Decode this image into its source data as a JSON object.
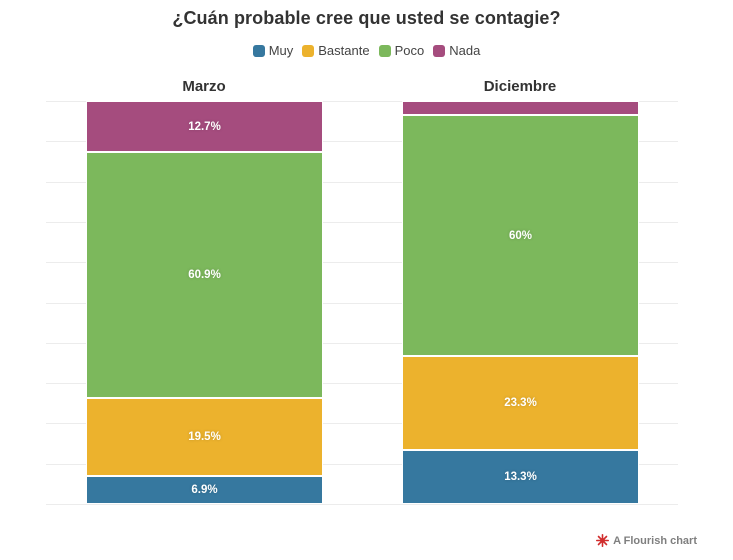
{
  "title": "¿Cuán probable cree que usted se contagie?",
  "legend": [
    {
      "label": "Muy",
      "color": "#36789F"
    },
    {
      "label": "Bastante",
      "color": "#ECB22D"
    },
    {
      "label": "Poco",
      "color": "#7CB85C"
    },
    {
      "label": "Nada",
      "color": "#A54C7E"
    }
  ],
  "chart_data": {
    "type": "bar",
    "stacked": true,
    "unit": "%",
    "title": "¿Cuán probable cree que usted se contagie?",
    "categories": [
      "Marzo",
      "Diciembre"
    ],
    "series": [
      {
        "name": "Muy",
        "color": "#36789F",
        "values": [
          6.9,
          13.3
        ],
        "labels": [
          "6.9%",
          "13.3%"
        ]
      },
      {
        "name": "Bastante",
        "color": "#ECB22D",
        "values": [
          19.5,
          23.3
        ],
        "labels": [
          "19.5%",
          "23.3%"
        ]
      },
      {
        "name": "Poco",
        "color": "#7CB85C",
        "values": [
          60.9,
          60
        ],
        "labels": [
          "60.9%",
          "60%"
        ]
      },
      {
        "name": "Nada",
        "color": "#A54C7E",
        "values": [
          12.7,
          3.4
        ],
        "labels": [
          "12.7%",
          ""
        ]
      }
    ],
    "ylim": [
      0,
      100
    ],
    "grid": true,
    "gridline_step": 10,
    "legend_position": "top",
    "xlabel": "",
    "ylabel": ""
  },
  "attribution": {
    "text": "A Flourish chart",
    "icon_color": "#d02c2c",
    "text_color": "#7f7f7f"
  }
}
